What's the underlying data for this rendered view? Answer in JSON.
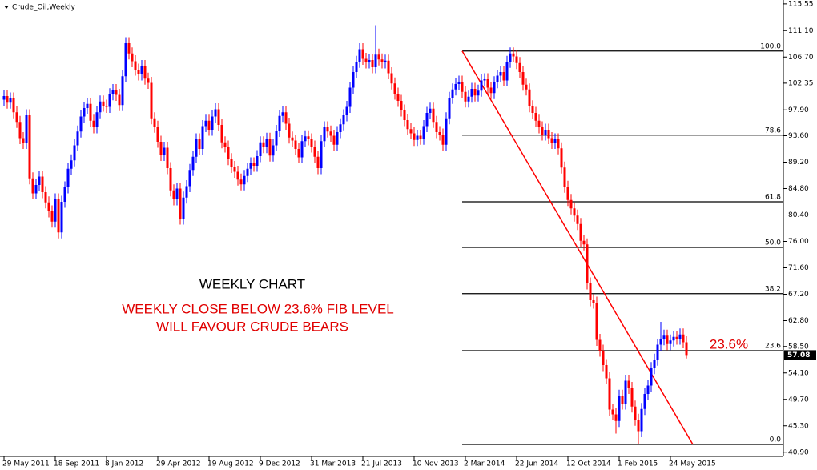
{
  "chart_data": {
    "type": "candlestick",
    "title": "Crude_Oil,Weekly",
    "annotations": [
      "WEEKLY CHART",
      "WEEKLY CLOSE BELOW 23.6% FIB LEVEL",
      "WILL FAVOUR CRUDE BEARS",
      "23.6%"
    ],
    "categories": [
      "29 May 2011",
      null,
      null,
      null,
      null,
      null,
      null,
      null,
      null,
      null,
      null,
      null,
      null,
      null,
      null,
      null,
      "18 Sep 2011",
      null,
      null,
      null,
      null,
      null,
      null,
      null,
      null,
      null,
      null,
      null,
      null,
      null,
      null,
      null,
      "8 Jan 2012",
      null,
      null,
      null,
      null,
      null,
      null,
      null,
      null,
      null,
      null,
      null,
      null,
      null,
      null,
      null,
      "29 Apr 2012",
      null,
      null,
      null,
      null,
      null,
      null,
      null,
      null,
      null,
      null,
      null,
      null,
      null,
      null,
      null,
      "19 Aug 2012",
      null,
      null,
      null,
      null,
      null,
      null,
      null,
      null,
      null,
      null,
      null,
      null,
      null,
      null,
      null,
      "9 Dec 2012",
      null,
      null,
      null,
      null,
      null,
      null,
      null,
      null,
      null,
      null,
      null,
      null,
      null,
      null,
      null,
      "31 Mar 2013",
      null,
      null,
      null,
      null,
      null,
      null,
      null,
      null,
      null,
      null,
      null,
      null,
      null,
      null,
      null,
      "21 Jul 2013",
      null,
      null,
      null,
      null,
      null,
      null,
      null,
      null,
      null,
      null,
      null,
      null,
      null,
      null,
      null,
      "10 Nov 2013",
      null,
      null,
      null,
      null,
      null,
      null,
      null,
      null,
      null,
      null,
      null,
      null,
      null,
      null,
      null,
      "2 Mar 2014",
      null,
      null,
      null,
      null,
      null,
      null,
      null,
      null,
      null,
      null,
      null,
      null,
      null,
      null,
      null,
      "22 Jun 2014",
      null,
      null,
      null,
      null,
      null,
      null,
      null,
      null,
      null,
      null,
      null,
      null,
      null,
      null,
      null,
      "12 Oct 2014",
      null,
      null,
      null,
      null,
      null,
      null,
      null,
      null,
      null,
      null,
      null,
      null,
      null,
      null,
      null,
      "1 Feb 2015",
      null,
      null,
      null,
      null,
      null,
      null,
      null,
      null,
      null,
      null,
      null,
      null,
      null,
      null,
      null,
      "24 May 2015",
      null,
      null,
      null,
      null,
      null
    ],
    "open": [
      99.6,
      100.2,
      99.1,
      99.8,
      97.5,
      95.9,
      93.2,
      92.4,
      97.0,
      86.5,
      84.0,
      85.4,
      86.8,
      84.2,
      82.5,
      81.0,
      79.3,
      83.0,
      77.5,
      82.6,
      85.0,
      88.1,
      89.5,
      92.0,
      94.3,
      96.8,
      98.2,
      98.9,
      96.1,
      95.0,
      97.5,
      99.3,
      98.6,
      98.4,
      100.5,
      101.2,
      100.4,
      98.7,
      103.5,
      109.0,
      107.3,
      106.0,
      104.6,
      103.8,
      105.2,
      103.1,
      102.4,
      96.5,
      95.1,
      92.6,
      90.4,
      91.6,
      88.2,
      84.5,
      83.0,
      84.8,
      79.8,
      83.3,
      85.2,
      87.9,
      90.1,
      93.0,
      91.4,
      95.2,
      96.1,
      94.6,
      96.8,
      98.0,
      95.4,
      92.5,
      91.8,
      89.7,
      88.4,
      87.6,
      86.3,
      85.5,
      86.9,
      88.1,
      89.0,
      88.6,
      90.2,
      92.5,
      91.7,
      93.1,
      90.3,
      92.0,
      94.4,
      96.9,
      97.5,
      95.6,
      93.3,
      92.8,
      91.4,
      90.0,
      92.7,
      93.5,
      93.0,
      91.8,
      90.1,
      88.2,
      92.7,
      95.0,
      94.3,
      93.6,
      92.1,
      94.2,
      95.5,
      97.0,
      98.4,
      101.6,
      104.2,
      105.9,
      108.0,
      106.4,
      105.8,
      106.2,
      105.0,
      107.1,
      106.3,
      105.8,
      106.1,
      104.0,
      102.3,
      100.6,
      99.4,
      97.8,
      96.2,
      94.7,
      94.0,
      92.9,
      93.6,
      93.1,
      95.2,
      97.4,
      98.1,
      95.9,
      94.2,
      93.8,
      92.1,
      96.5,
      99.9,
      101.3,
      102.2,
      102.6,
      100.9,
      99.3,
      100.1,
      101.4,
      100.3,
      101.1,
      102.8,
      103.0,
      101.6,
      100.7,
      102.5,
      103.6,
      104.2,
      102.8,
      105.9,
      107.3,
      106.8,
      105.7,
      104.2,
      102.1,
      101.3,
      98.5,
      97.4,
      96.1,
      95.0,
      93.8,
      94.6,
      93.2,
      92.4,
      93.0,
      91.5,
      88.3,
      85.1,
      82.9,
      81.5,
      80.3,
      78.9,
      76.1,
      75.5,
      69.0,
      66.2,
      65.8,
      59.6,
      57.8,
      55.4,
      53.2,
      48.0,
      47.2,
      46.1,
      50.3,
      49.0,
      52.8,
      51.6,
      48.5,
      46.3,
      44.4,
      48.1,
      50.6,
      52.0,
      54.9,
      56.3,
      58.8,
      59.7,
      60.3,
      58.9,
      59.5,
      60.1,
      59.8,
      60.5,
      59.2
    ],
    "high": [
      101.2,
      101.2,
      100.8,
      100.8,
      98.5,
      96.9,
      94.2,
      98.0,
      98.0,
      87.5,
      86.4,
      87.8,
      87.8,
      85.2,
      83.5,
      82.0,
      84.0,
      84.0,
      83.6,
      86.0,
      89.1,
      90.5,
      93.0,
      95.3,
      97.8,
      99.2,
      99.9,
      99.9,
      97.1,
      98.5,
      100.3,
      100.3,
      99.6,
      101.5,
      102.2,
      102.2,
      101.4,
      104.5,
      110.0,
      110.0,
      108.3,
      107.0,
      105.6,
      106.2,
      106.2,
      104.1,
      103.4,
      97.5,
      96.1,
      93.6,
      92.6,
      92.6,
      89.2,
      85.5,
      85.8,
      85.8,
      84.3,
      86.2,
      88.9,
      91.1,
      94.0,
      94.0,
      96.2,
      97.1,
      97.1,
      97.8,
      99.0,
      99.0,
      96.4,
      93.5,
      92.8,
      90.7,
      89.4,
      88.6,
      87.3,
      87.9,
      89.1,
      90.0,
      90.0,
      91.2,
      93.5,
      93.5,
      94.1,
      94.1,
      93.0,
      95.4,
      97.9,
      98.5,
      98.5,
      96.6,
      94.3,
      93.8,
      92.4,
      93.7,
      94.5,
      94.5,
      94.0,
      92.8,
      91.1,
      93.7,
      96.0,
      96.0,
      95.3,
      94.6,
      95.2,
      96.5,
      98.0,
      99.4,
      102.6,
      105.2,
      106.9,
      109.0,
      109.0,
      107.4,
      107.2,
      107.2,
      112.0,
      108.1,
      107.3,
      107.1,
      107.1,
      105.0,
      103.3,
      101.6,
      100.4,
      98.8,
      97.2,
      95.7,
      95.0,
      94.6,
      94.6,
      96.2,
      98.4,
      99.1,
      99.1,
      96.9,
      95.2,
      94.8,
      97.5,
      100.9,
      102.3,
      103.2,
      103.6,
      103.6,
      101.9,
      101.1,
      102.4,
      102.4,
      102.1,
      103.8,
      104.0,
      104.0,
      102.6,
      103.5,
      104.6,
      105.2,
      105.2,
      106.9,
      108.3,
      108.3,
      107.8,
      106.7,
      105.2,
      103.1,
      102.3,
      99.5,
      98.4,
      97.1,
      96.0,
      95.6,
      95.6,
      94.2,
      94.0,
      94.0,
      92.5,
      89.3,
      86.1,
      83.9,
      82.5,
      81.3,
      79.9,
      77.1,
      76.5,
      70.0,
      67.2,
      66.8,
      60.6,
      58.8,
      56.4,
      54.2,
      49.0,
      48.2,
      51.3,
      51.3,
      53.8,
      53.8,
      52.6,
      49.5,
      47.3,
      49.1,
      51.6,
      53.0,
      55.9,
      57.3,
      59.8,
      62.6,
      61.3,
      61.3,
      60.5,
      61.1,
      61.1,
      61.5,
      61.5,
      60.2
    ],
    "low": [
      98.6,
      98.1,
      98.1,
      96.5,
      94.9,
      92.2,
      91.4,
      91.4,
      85.5,
      83.0,
      83.0,
      84.4,
      83.2,
      81.5,
      80.0,
      78.3,
      78.3,
      76.5,
      76.5,
      81.6,
      84.0,
      87.1,
      88.5,
      91.0,
      93.3,
      95.8,
      97.2,
      95.1,
      94.0,
      94.0,
      96.5,
      97.6,
      97.4,
      97.4,
      99.5,
      99.4,
      97.7,
      97.7,
      102.5,
      106.3,
      105.0,
      103.6,
      102.8,
      102.8,
      102.1,
      101.4,
      95.5,
      94.1,
      91.6,
      89.4,
      89.4,
      87.2,
      83.5,
      82.0,
      82.0,
      78.8,
      78.8,
      82.3,
      84.2,
      86.9,
      89.1,
      90.4,
      90.4,
      94.2,
      93.6,
      93.6,
      95.8,
      94.4,
      91.5,
      90.8,
      88.7,
      87.4,
      86.6,
      85.3,
      84.5,
      84.5,
      85.9,
      87.1,
      87.6,
      87.6,
      89.2,
      90.7,
      90.7,
      89.3,
      89.3,
      91.0,
      93.4,
      95.9,
      94.6,
      92.3,
      91.8,
      90.4,
      89.0,
      89.0,
      91.7,
      92.0,
      90.8,
      89.1,
      87.2,
      87.2,
      91.7,
      93.3,
      92.6,
      91.1,
      91.1,
      93.2,
      94.5,
      96.0,
      97.4,
      100.6,
      103.2,
      104.9,
      105.4,
      104.8,
      104.8,
      104.0,
      104.0,
      105.3,
      104.8,
      104.8,
      103.0,
      101.3,
      99.6,
      98.4,
      96.8,
      95.2,
      93.7,
      93.0,
      91.9,
      91.9,
      92.1,
      92.1,
      94.2,
      96.4,
      94.9,
      93.2,
      92.8,
      91.1,
      91.1,
      95.5,
      98.9,
      100.3,
      101.2,
      99.9,
      98.3,
      98.3,
      99.1,
      99.3,
      99.3,
      100.1,
      101.8,
      100.6,
      99.7,
      99.7,
      101.5,
      102.6,
      101.8,
      101.8,
      104.9,
      105.8,
      104.7,
      103.2,
      101.1,
      100.3,
      97.5,
      96.4,
      95.1,
      94.0,
      92.8,
      92.8,
      92.2,
      91.4,
      91.4,
      90.5,
      87.3,
      84.1,
      81.9,
      80.5,
      79.3,
      77.9,
      75.1,
      74.5,
      68.0,
      65.2,
      64.8,
      58.6,
      56.8,
      54.4,
      52.2,
      47.0,
      46.2,
      44.0,
      45.1,
      48.0,
      48.0,
      50.6,
      47.5,
      45.3,
      42.2,
      43.4,
      47.1,
      49.6,
      51.0,
      53.9,
      55.3,
      57.8,
      58.7,
      57.9,
      57.9,
      58.5,
      58.8,
      58.8,
      58.2,
      56.5
    ],
    "close": [
      100.2,
      99.1,
      99.8,
      97.5,
      95.9,
      93.2,
      92.4,
      97.0,
      86.5,
      84.0,
      85.4,
      86.8,
      84.2,
      82.5,
      81.0,
      79.3,
      83.0,
      77.5,
      82.6,
      85.0,
      88.1,
      89.5,
      92.0,
      94.3,
      96.8,
      98.2,
      98.9,
      96.1,
      95.0,
      97.5,
      99.3,
      98.6,
      98.4,
      100.5,
      101.2,
      100.4,
      98.7,
      103.5,
      109.0,
      107.3,
      106.0,
      104.6,
      103.8,
      105.2,
      103.1,
      102.4,
      96.5,
      95.1,
      92.6,
      90.4,
      91.6,
      88.2,
      84.5,
      83.0,
      84.8,
      79.8,
      83.3,
      85.2,
      87.9,
      90.1,
      93.0,
      91.4,
      95.2,
      96.1,
      94.6,
      96.8,
      98.0,
      95.4,
      92.5,
      91.8,
      89.7,
      88.4,
      87.6,
      86.3,
      85.5,
      86.9,
      88.1,
      89.0,
      88.6,
      90.2,
      92.5,
      91.7,
      93.1,
      90.3,
      92.0,
      94.4,
      96.9,
      97.5,
      95.6,
      93.3,
      92.8,
      91.4,
      90.0,
      92.7,
      93.5,
      93.0,
      91.8,
      90.1,
      88.2,
      92.7,
      95.0,
      94.3,
      93.6,
      92.1,
      94.2,
      95.5,
      97.0,
      98.4,
      101.6,
      104.2,
      105.9,
      108.0,
      106.4,
      105.8,
      106.2,
      105.0,
      107.1,
      106.3,
      105.8,
      106.1,
      104.0,
      102.3,
      100.6,
      99.4,
      97.8,
      96.2,
      94.7,
      94.0,
      92.9,
      93.6,
      93.1,
      95.2,
      97.4,
      98.1,
      95.9,
      94.2,
      93.8,
      92.1,
      96.5,
      99.9,
      101.3,
      102.2,
      102.6,
      100.9,
      99.3,
      100.1,
      101.4,
      100.3,
      101.1,
      102.8,
      103.0,
      101.6,
      100.7,
      102.5,
      103.6,
      104.2,
      102.8,
      105.9,
      107.3,
      106.8,
      105.7,
      104.2,
      102.1,
      101.3,
      98.5,
      97.4,
      96.1,
      95.0,
      93.8,
      94.6,
      93.2,
      92.4,
      93.0,
      91.5,
      88.3,
      85.1,
      82.9,
      81.5,
      80.3,
      78.9,
      76.1,
      75.5,
      69.0,
      66.2,
      65.8,
      59.6,
      57.8,
      55.4,
      53.2,
      48.0,
      47.2,
      46.1,
      50.3,
      49.0,
      52.8,
      51.6,
      48.5,
      46.3,
      44.4,
      48.1,
      50.6,
      52.0,
      54.9,
      56.3,
      58.8,
      59.7,
      60.3,
      58.9,
      59.5,
      60.1,
      59.8,
      60.5,
      59.2,
      57.08
    ],
    "up_color": "#0000ff",
    "down_color": "#ff0000",
    "fib_levels": [
      {
        "value": 107.7,
        "label": "100.0"
      },
      {
        "value": 93.7,
        "label": "78.6"
      },
      {
        "value": 82.6,
        "label": "61.8"
      },
      {
        "value": 75.0,
        "label": "50.0"
      },
      {
        "value": 67.3,
        "label": "38.2"
      },
      {
        "value": 57.8,
        "label": "23.6"
      },
      {
        "value": 42.2,
        "label": "0.0"
      }
    ],
    "fib_color": "#000000",
    "trendline_color": "#ff0000",
    "ylim": [
      40.2,
      116.2
    ],
    "yticks": [
      115.55,
      {
        "value": 111.1,
        "label": "111.10"
      },
      {
        "value": 106.7,
        "label": "106.70"
      },
      102.35,
      {
        "value": 97.9,
        "label": "97.90"
      },
      {
        "value": 93.6,
        "label": "93.60"
      },
      {
        "value": 89.2,
        "label": "89.20"
      },
      {
        "value": 84.8,
        "label": "84.80"
      },
      {
        "value": 80.4,
        "label": "80.40"
      },
      {
        "value": 76.0,
        "label": "76.00"
      },
      {
        "value": 71.6,
        "label": "71.60"
      },
      {
        "value": 67.2,
        "label": "67.20"
      },
      {
        "value": 62.8,
        "label": "62.80"
      },
      {
        "value": 58.5,
        "label": "58.50"
      },
      {
        "value": 54.1,
        "label": "54.10"
      },
      {
        "value": 49.7,
        "label": "49.70"
      },
      {
        "value": 45.3,
        "label": "45.30"
      },
      {
        "value": 40.9,
        "label": "40.90"
      }
    ],
    "grid": false
  }
}
